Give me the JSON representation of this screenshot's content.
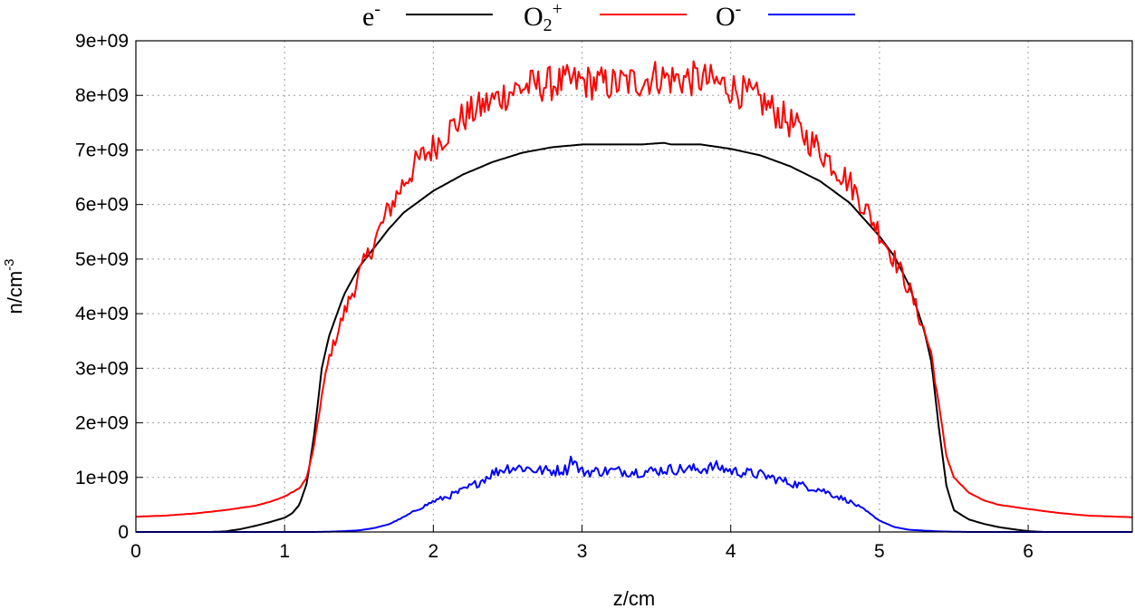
{
  "chart_data": {
    "type": "line",
    "xlabel": "z/cm",
    "ylabel": "n/cm",
    "ylabel_sup": "-3",
    "xlim": [
      0,
      6.7
    ],
    "ylim": [
      0,
      9000000000
    ],
    "xticks": [
      0,
      1,
      2,
      3,
      4,
      5,
      6
    ],
    "xtick_labels": [
      "0",
      "1",
      "2",
      "3",
      "4",
      "5",
      "6"
    ],
    "yticks": [
      0,
      1000000000,
      2000000000,
      3000000000,
      4000000000,
      5000000000,
      6000000000,
      7000000000,
      8000000000,
      9000000000
    ],
    "ytick_labels": [
      "0",
      "1e+09",
      "2e+09",
      "3e+09",
      "4e+09",
      "5e+09",
      "6e+09",
      "7e+09",
      "8e+09",
      "9e+09"
    ],
    "grid": true,
    "legend_position": "top",
    "series": [
      {
        "name": "e",
        "name_sup": "-",
        "color": "#000000",
        "x": [
          0,
          0.5,
          0.6,
          0.7,
          0.8,
          0.9,
          1.0,
          1.05,
          1.1,
          1.15,
          1.2,
          1.25,
          1.3,
          1.4,
          1.5,
          1.6,
          1.7,
          1.8,
          1.9,
          2.0,
          2.2,
          2.4,
          2.6,
          2.8,
          3.0,
          3.2,
          3.4,
          3.55,
          3.6,
          3.8,
          4.0,
          4.2,
          4.4,
          4.6,
          4.8,
          5.0,
          5.1,
          5.2,
          5.3,
          5.35,
          5.4,
          5.45,
          5.5,
          5.6,
          5.7,
          5.8,
          5.9,
          6.0,
          6.1,
          6.3,
          6.7
        ],
        "values": [
          0,
          0,
          10000000,
          50000000,
          110000000,
          180000000,
          260000000,
          340000000,
          500000000,
          900000000,
          1800000000,
          3000000000,
          3600000000,
          4350000000,
          4850000000,
          5200000000,
          5550000000,
          5850000000,
          6050000000,
          6250000000,
          6550000000,
          6780000000,
          6950000000,
          7050000000,
          7100000000,
          7100000000,
          7100000000,
          7130000000,
          7100000000,
          7100000000,
          7020000000,
          6900000000,
          6700000000,
          6430000000,
          6030000000,
          5420000000,
          5050000000,
          4520000000,
          3700000000,
          3100000000,
          1900000000,
          850000000,
          400000000,
          230000000,
          150000000,
          90000000,
          50000000,
          15000000,
          0,
          0,
          0
        ]
      },
      {
        "name": "O",
        "name_sub": "2",
        "name_sup": "+",
        "color": "#ff0000",
        "noise": 0.04,
        "x": [
          0,
          0.2,
          0.4,
          0.6,
          0.8,
          0.9,
          1.0,
          1.1,
          1.15,
          1.2,
          1.25,
          1.3,
          1.4,
          1.5,
          1.6,
          1.7,
          1.8,
          1.9,
          2.0,
          2.1,
          2.2,
          2.4,
          2.5,
          2.6,
          2.8,
          3.0,
          3.2,
          3.4,
          3.5,
          3.6,
          3.8,
          4.0,
          4.2,
          4.4,
          4.6,
          4.8,
          5.0,
          5.1,
          5.2,
          5.3,
          5.35,
          5.4,
          5.45,
          5.5,
          5.6,
          5.7,
          5.8,
          6.0,
          6.2,
          6.4,
          6.6,
          6.7
        ],
        "values": [
          280000000,
          300000000,
          340000000,
          400000000,
          480000000,
          550000000,
          650000000,
          800000000,
          1000000000,
          1600000000,
          2500000000,
          3200000000,
          4000000000,
          4700000000,
          5300000000,
          5900000000,
          6400000000,
          6800000000,
          7050000000,
          7350000000,
          7600000000,
          7900000000,
          8050000000,
          8150000000,
          8220000000,
          8250000000,
          8200000000,
          8270000000,
          8350000000,
          8300000000,
          8300000000,
          8150000000,
          7900000000,
          7500000000,
          7000000000,
          6400000000,
          5500000000,
          5000000000,
          4450000000,
          3700000000,
          3250000000,
          2300000000,
          1400000000,
          1000000000,
          720000000,
          580000000,
          500000000,
          420000000,
          350000000,
          300000000,
          280000000,
          270000000
        ]
      },
      {
        "name": "O",
        "name_sup": "-",
        "color": "#0000ff",
        "noise": 0.09,
        "x": [
          0,
          1.0,
          1.2,
          1.3,
          1.4,
          1.5,
          1.6,
          1.7,
          1.8,
          1.9,
          2.0,
          2.1,
          2.2,
          2.3,
          2.4,
          2.5,
          2.6,
          2.7,
          2.8,
          2.9,
          2.93,
          2.97,
          3.0,
          3.2,
          3.4,
          3.6,
          3.8,
          3.9,
          4.0,
          4.2,
          4.4,
          4.6,
          4.7,
          4.8,
          4.9,
          5.0,
          5.1,
          5.2,
          5.4,
          5.6,
          6.7
        ],
        "values": [
          0,
          0,
          0,
          5000000,
          15000000,
          30000000,
          70000000,
          140000000,
          270000000,
          420000000,
          560000000,
          650000000,
          760000000,
          900000000,
          1080000000,
          1180000000,
          1180000000,
          1130000000,
          1120000000,
          1150000000,
          1380000000,
          1180000000,
          1100000000,
          1120000000,
          1100000000,
          1150000000,
          1150000000,
          1200000000,
          1120000000,
          1050000000,
          900000000,
          780000000,
          670000000,
          560000000,
          400000000,
          210000000,
          90000000,
          40000000,
          10000000,
          0,
          0
        ]
      }
    ]
  }
}
